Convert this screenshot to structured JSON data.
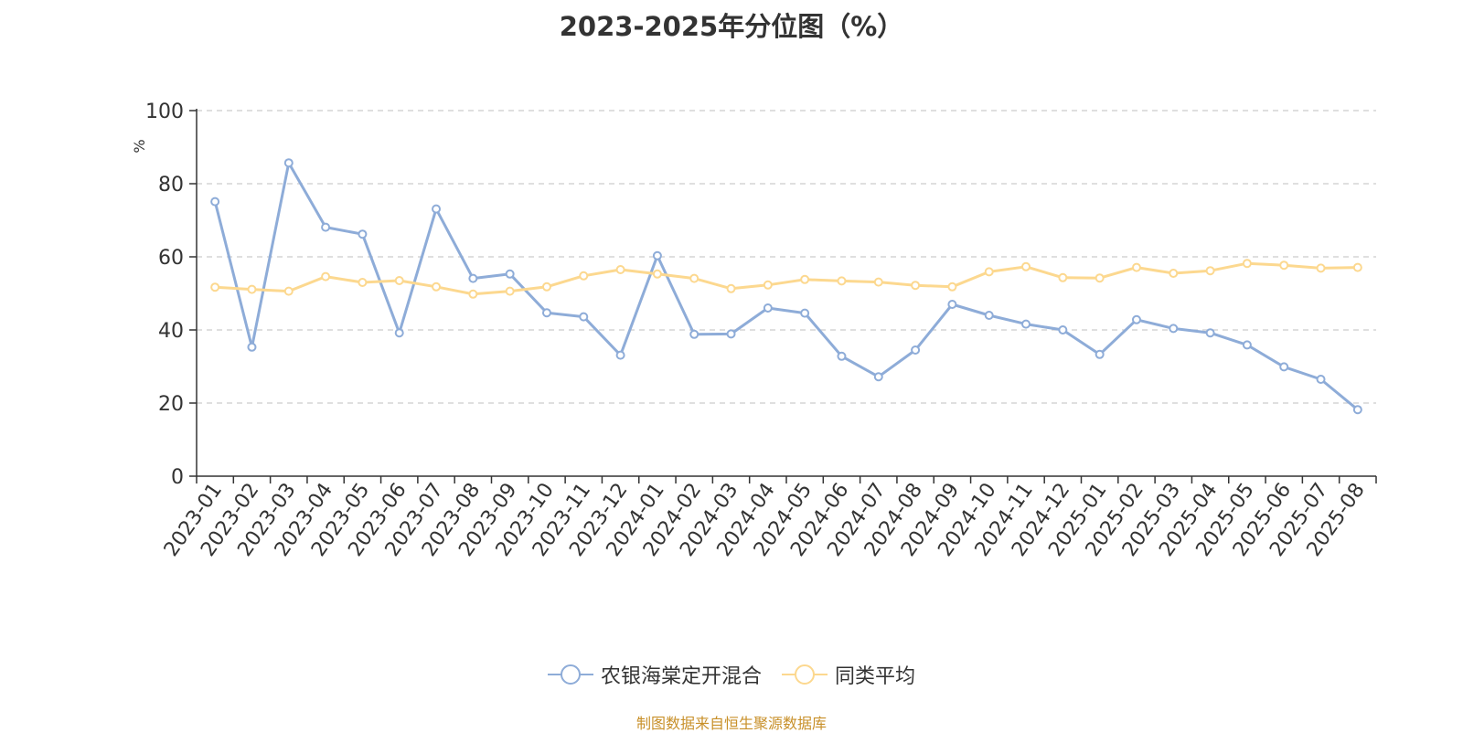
{
  "chart_data": {
    "type": "line",
    "title": "2023-2025年分位图（%）",
    "ylabel": "%",
    "ylim": [
      0,
      100
    ],
    "yticks": [
      0,
      20,
      40,
      60,
      80,
      100
    ],
    "grid": true,
    "legend_position": "bottom-center",
    "categories": [
      "2023-01",
      "2023-02",
      "2023-03",
      "2023-04",
      "2023-05",
      "2023-06",
      "2023-07",
      "2023-08",
      "2023-09",
      "2023-10",
      "2023-11",
      "2023-12",
      "2024-01",
      "2024-02",
      "2024-03",
      "2024-04",
      "2024-05",
      "2024-06",
      "2024-07",
      "2024-08",
      "2024-09",
      "2024-10",
      "2024-11",
      "2024-12",
      "2025-01",
      "2025-02",
      "2025-03",
      "2025-04",
      "2025-05",
      "2025-06",
      "2025-07",
      "2025-08"
    ],
    "series": [
      {
        "name": "农银海棠定开混合",
        "color": "#8eacd8",
        "values": [
          75.1,
          35.3,
          85.7,
          68.1,
          66.2,
          39.2,
          73.1,
          54.1,
          55.3,
          44.7,
          43.6,
          33.1,
          60.3,
          38.8,
          38.9,
          46.0,
          44.6,
          32.8,
          27.2,
          34.5,
          47.0,
          44.0,
          41.6,
          40.0,
          33.3,
          42.8,
          40.4,
          39.2,
          35.9,
          29.9,
          26.5,
          18.2
        ]
      },
      {
        "name": "同类平均",
        "color": "#fcd88f",
        "values": [
          51.7,
          51.1,
          50.6,
          54.6,
          53.0,
          53.5,
          51.8,
          49.8,
          50.6,
          51.8,
          54.8,
          56.5,
          55.3,
          54.1,
          51.3,
          52.3,
          53.8,
          53.4,
          53.1,
          52.2,
          51.8,
          55.9,
          57.3,
          54.3,
          54.2,
          57.1,
          55.5,
          56.2,
          58.2,
          57.7,
          56.9,
          57.1
        ]
      }
    ]
  },
  "footer": {
    "source": "制图数据来自恒生聚源数据库"
  }
}
